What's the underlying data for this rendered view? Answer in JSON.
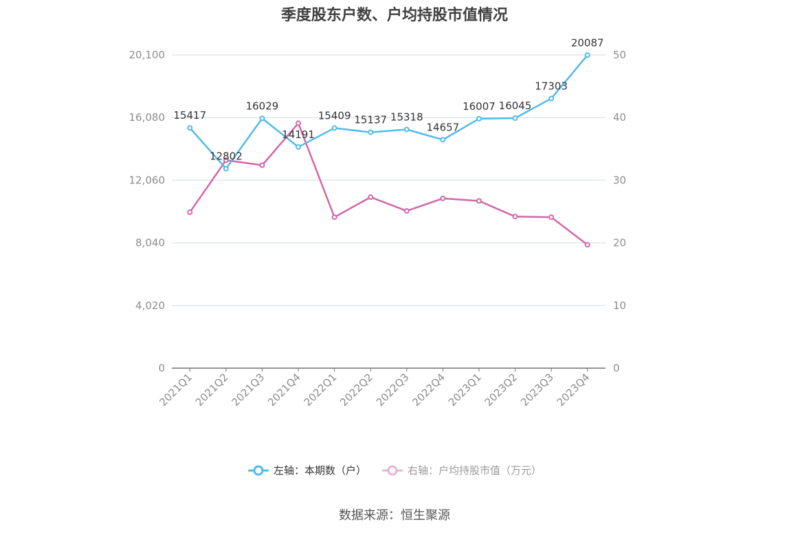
{
  "title": "季度股东户数、户均持股市值情况",
  "source": "数据来源：恒生聚源",
  "legend": {
    "left": "左轴：本期数（户）",
    "right": "右轴：户均持股市值（万元）"
  },
  "colors": {
    "left_series": "#4fbbeb",
    "right_series": "#d465a8",
    "grid": "#e0e6f1",
    "axis": "#6e7079"
  },
  "chart_data": {
    "type": "line",
    "title": "季度股东户数、户均持股市值情况",
    "categories": [
      "2021Q1",
      "2021Q2",
      "2021Q3",
      "2021Q4",
      "2022Q1",
      "2022Q2",
      "2022Q3",
      "2022Q4",
      "2023Q1",
      "2023Q2",
      "2023Q3",
      "2023Q4"
    ],
    "series": [
      {
        "name": "左轴：本期数（户）",
        "axis": "left",
        "values": [
          15417,
          12802,
          16029,
          14191,
          15409,
          15137,
          15318,
          14657,
          16007,
          16045,
          17303,
          20087
        ],
        "labels_shown": true
      },
      {
        "name": "右轴：户均持股市值（万元）",
        "axis": "right",
        "values": [
          24.9,
          33.2,
          32.4,
          39.1,
          24.1,
          27.3,
          25.1,
          27.1,
          26.7,
          24.2,
          24.1,
          19.7
        ],
        "labels_shown": false
      }
    ],
    "left_axis": {
      "ticks": [
        "0",
        "4,020",
        "8,040",
        "12,060",
        "16,080",
        "20,100"
      ],
      "ylim": [
        0,
        20100
      ]
    },
    "right_axis": {
      "ticks": [
        "0",
        "10",
        "20",
        "30",
        "40",
        "50"
      ],
      "ylim": [
        0,
        50
      ]
    },
    "xlabel": "",
    "ylabel": "",
    "grid": true,
    "legend_position": "bottom"
  }
}
